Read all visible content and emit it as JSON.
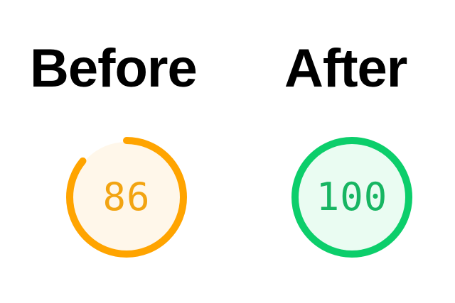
{
  "before": {
    "heading": "Before",
    "score": "86",
    "score_fraction": 0.86,
    "colors": {
      "arc": "#ffa400",
      "fill": "#fff7ea",
      "text": "#f2a412"
    }
  },
  "after": {
    "heading": "After",
    "score": "100",
    "score_fraction": 1.0,
    "colors": {
      "arc": "#0cce6b",
      "fill": "#eafcf2",
      "text": "#17b562"
    }
  }
}
